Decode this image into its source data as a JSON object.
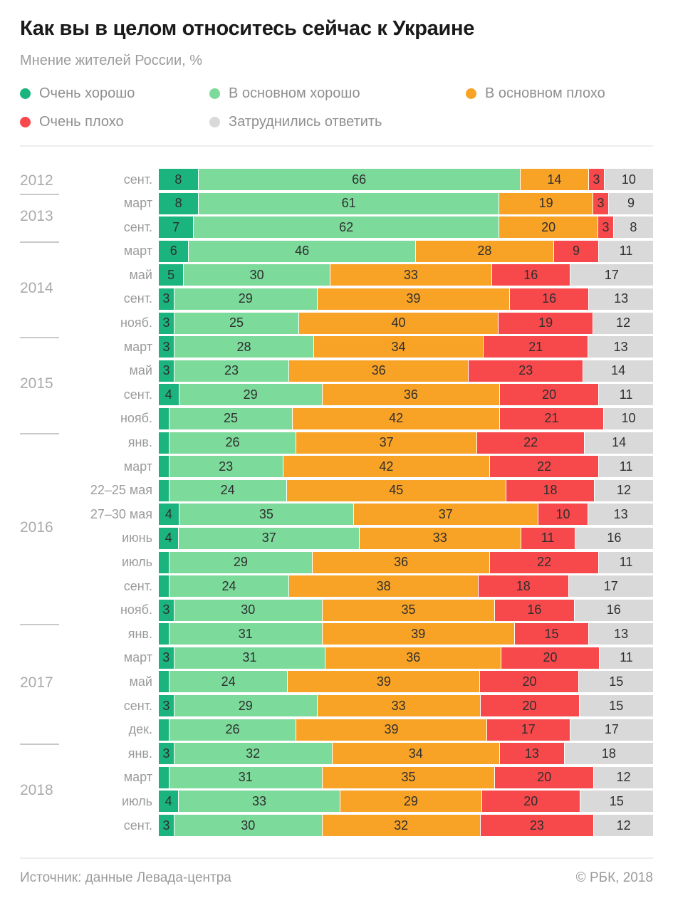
{
  "title": "Как вы в целом относитесь сейчас к Украине",
  "subtitle": "Мнение жителей России, %",
  "legend": [
    {
      "key": "very-good",
      "label": "Очень хорошо",
      "color": "#1bb47e"
    },
    {
      "key": "mostly-good",
      "label": "В основном хорошо",
      "color": "#7cda9b"
    },
    {
      "key": "mostly-bad",
      "label": "В основном плохо",
      "color": "#f9a326"
    },
    {
      "key": "very-bad",
      "label": "Очень плохо",
      "color": "#f7494c"
    },
    {
      "key": "no-answer",
      "label": "Затруднились ответить",
      "color": "#d9d9d9"
    }
  ],
  "footer": {
    "source": "Источник: данные Левада-центра",
    "copyright": "© РБК, 2018"
  },
  "chart_data": {
    "type": "bar",
    "stacked": true,
    "orientation": "horizontal",
    "unit": "%",
    "series_names": [
      "Очень хорошо",
      "В основном хорошо",
      "В основном плохо",
      "Очень плохо",
      "Затруднились ответить"
    ],
    "colors": [
      "#1bb47e",
      "#7cda9b",
      "#f9a326",
      "#f7494c",
      "#d9d9d9"
    ],
    "note": "values without visible data label on the chart are estimated as 2 and carry an empty label string",
    "groups": [
      {
        "year": "2012",
        "rows": [
          {
            "month": "сент.",
            "values": [
              8,
              66,
              14,
              3,
              10
            ],
            "labels": [
              "8",
              "66",
              "14",
              "3",
              "10"
            ]
          }
        ]
      },
      {
        "year": "2013",
        "rows": [
          {
            "month": "март",
            "values": [
              8,
              61,
              19,
              3,
              9
            ],
            "labels": [
              "8",
              "61",
              "19",
              "3",
              "9"
            ]
          },
          {
            "month": "сент.",
            "values": [
              7,
              62,
              20,
              3,
              8
            ],
            "labels": [
              "7",
              "62",
              "20",
              "3",
              "8"
            ]
          }
        ]
      },
      {
        "year": "2014",
        "rows": [
          {
            "month": "март",
            "values": [
              6,
              46,
              28,
              9,
              11
            ],
            "labels": [
              "6",
              "46",
              "28",
              "9",
              "11"
            ]
          },
          {
            "month": "май",
            "values": [
              5,
              30,
              33,
              16,
              17
            ],
            "labels": [
              "5",
              "30",
              "33",
              "16",
              "17"
            ]
          },
          {
            "month": "сент.",
            "values": [
              3,
              29,
              39,
              16,
              13
            ],
            "labels": [
              "3",
              "29",
              "39",
              "16",
              "13"
            ]
          },
          {
            "month": "нояб.",
            "values": [
              3,
              25,
              40,
              19,
              12
            ],
            "labels": [
              "3",
              "25",
              "40",
              "19",
              "12"
            ]
          }
        ]
      },
      {
        "year": "2015",
        "rows": [
          {
            "month": "март",
            "values": [
              3,
              28,
              34,
              21,
              13
            ],
            "labels": [
              "3",
              "28",
              "34",
              "21",
              "13"
            ]
          },
          {
            "month": "май",
            "values": [
              3,
              23,
              36,
              23,
              14
            ],
            "labels": [
              "3",
              "23",
              "36",
              "23",
              "14"
            ]
          },
          {
            "month": "сент.",
            "values": [
              4,
              29,
              36,
              20,
              11
            ],
            "labels": [
              "4",
              "29",
              "36",
              "20",
              "11"
            ]
          },
          {
            "month": "нояб.",
            "values": [
              2,
              25,
              42,
              21,
              10
            ],
            "labels": [
              "",
              "25",
              "42",
              "21",
              "10"
            ]
          }
        ]
      },
      {
        "year": "2016",
        "rows": [
          {
            "month": "янв.",
            "values": [
              2,
              26,
              37,
              22,
              14
            ],
            "labels": [
              "",
              "26",
              "37",
              "22",
              "14"
            ]
          },
          {
            "month": "март",
            "values": [
              2,
              23,
              42,
              22,
              11
            ],
            "labels": [
              "",
              "23",
              "42",
              "22",
              "11"
            ]
          },
          {
            "month": "22–25 мая",
            "values": [
              2,
              24,
              45,
              18,
              12
            ],
            "labels": [
              "",
              "24",
              "45",
              "18",
              "12"
            ]
          },
          {
            "month": "27–30 мая",
            "values": [
              4,
              35,
              37,
              10,
              13
            ],
            "labels": [
              "4",
              "35",
              "37",
              "10",
              "13"
            ]
          },
          {
            "month": "июнь",
            "values": [
              4,
              37,
              33,
              11,
              16
            ],
            "labels": [
              "4",
              "37",
              "33",
              "11",
              "16"
            ]
          },
          {
            "month": "июль",
            "values": [
              2,
              29,
              36,
              22,
              11
            ],
            "labels": [
              "",
              "29",
              "36",
              "22",
              "11"
            ]
          },
          {
            "month": "сент.",
            "values": [
              2,
              24,
              38,
              18,
              17
            ],
            "labels": [
              "",
              "24",
              "38",
              "18",
              "17"
            ]
          },
          {
            "month": "нояб.",
            "values": [
              3,
              30,
              35,
              16,
              16
            ],
            "labels": [
              "3",
              "30",
              "35",
              "16",
              "16"
            ]
          }
        ]
      },
      {
        "year": "2017",
        "rows": [
          {
            "month": "янв.",
            "values": [
              2,
              31,
              39,
              15,
              13
            ],
            "labels": [
              "",
              "31",
              "39",
              "15",
              "13"
            ]
          },
          {
            "month": "март",
            "values": [
              3,
              31,
              36,
              20,
              11
            ],
            "labels": [
              "3",
              "31",
              "36",
              "20",
              "11"
            ]
          },
          {
            "month": "май",
            "values": [
              2,
              24,
              39,
              20,
              15
            ],
            "labels": [
              "",
              "24",
              "39",
              "20",
              "15"
            ]
          },
          {
            "month": "сент.",
            "values": [
              3,
              29,
              33,
              20,
              15
            ],
            "labels": [
              "3",
              "29",
              "33",
              "20",
              "15"
            ]
          },
          {
            "month": "дек.",
            "values": [
              2,
              26,
              39,
              17,
              17
            ],
            "labels": [
              "",
              "26",
              "39",
              "17",
              "17"
            ]
          }
        ]
      },
      {
        "year": "2018",
        "rows": [
          {
            "month": "янв.",
            "values": [
              3,
              32,
              34,
              13,
              18
            ],
            "labels": [
              "3",
              "32",
              "34",
              "13",
              "18"
            ]
          },
          {
            "month": "март",
            "values": [
              2,
              31,
              35,
              20,
              12
            ],
            "labels": [
              "",
              "31",
              "35",
              "20",
              "12"
            ]
          },
          {
            "month": "июль",
            "values": [
              4,
              33,
              29,
              20,
              15
            ],
            "labels": [
              "4",
              "33",
              "29",
              "20",
              "15"
            ]
          },
          {
            "month": "сент.",
            "values": [
              3,
              30,
              32,
              23,
              12
            ],
            "labels": [
              "3",
              "30",
              "32",
              "23",
              "12"
            ]
          }
        ]
      }
    ]
  }
}
